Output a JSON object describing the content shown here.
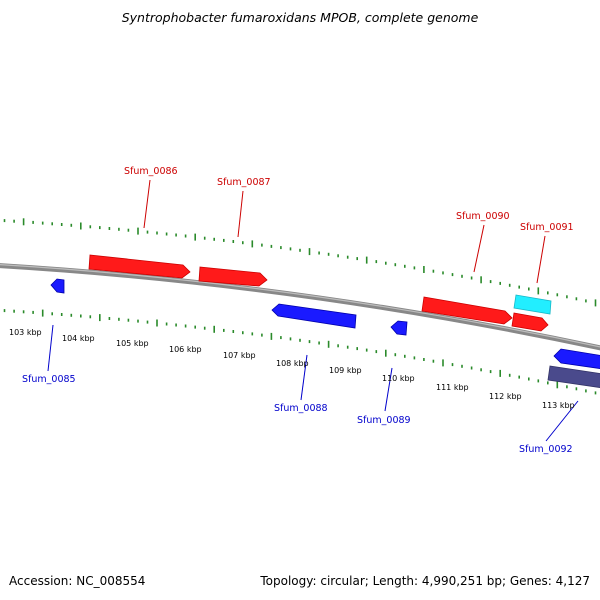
{
  "title": "Syntrophobacter fumaroxidans MPOB, complete genome",
  "footer": {
    "accession": "Accession: NC_008554",
    "stats": "Topology: circular; Length: 4,990,251 bp; Genes: 4,127"
  },
  "colors": {
    "forward_gene": "#ff1a1a",
    "reverse_gene": "#1a1aff",
    "rna_gene": "#22eeff",
    "other_gene": "#4a4a8c",
    "backbone": "#888888",
    "tick": "#2a8a2a",
    "forward_label": "#cc0000",
    "reverse_label": "#0000cc",
    "kbp_label": "#000000"
  },
  "kbp_labels": [
    "103 kbp",
    "104 kbp",
    "105 kbp",
    "106 kbp",
    "107 kbp",
    "108 kbp",
    "109 kbp",
    "110 kbp",
    "111 kbp",
    "112 kbp",
    "113 kbp"
  ],
  "forward_gene_labels": [
    "Sfum_0086",
    "Sfum_0087",
    "Sfum_0090",
    "Sfum_0091"
  ],
  "reverse_gene_labels": [
    "Sfum_0085",
    "Sfum_0088",
    "Sfum_0089",
    "Sfum_0092"
  ]
}
